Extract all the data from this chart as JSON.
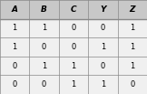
{
  "headers": [
    "A",
    "B",
    "C",
    "Y",
    "Z"
  ],
  "rows": [
    [
      "1",
      "1",
      "0",
      "0",
      "1"
    ],
    [
      "1",
      "0",
      "0",
      "1",
      "1"
    ],
    [
      "0",
      "1",
      "1",
      "0",
      "1"
    ],
    [
      "0",
      "0",
      "1",
      "1",
      "0"
    ]
  ],
  "header_bg": "#c8c8c8",
  "row_bg": "#f0f0f0",
  "grid_color": "#888888",
  "text_color": "#000000",
  "header_fontsize": 6.5,
  "cell_fontsize": 6.0,
  "fig_width": 1.62,
  "fig_height": 1.03,
  "dpi": 100
}
